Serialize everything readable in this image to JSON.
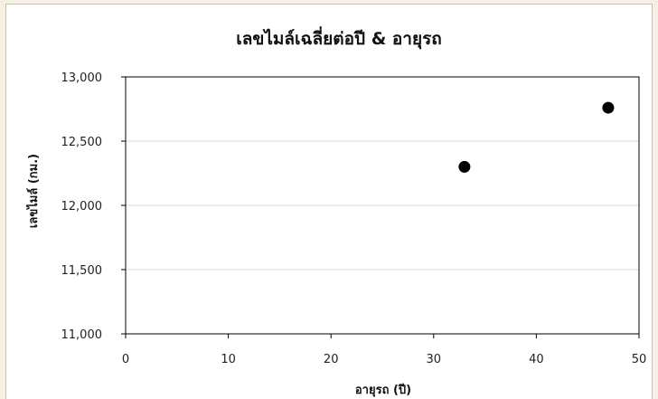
{
  "chart_data": {
    "type": "scatter",
    "title": "เลขไมล์เฉลี่ยต่อปี & อายุรถ",
    "xlabel": "อายุรถ (ปี)",
    "ylabel": "เลขไมล์ (กม.)",
    "xlim": [
      0,
      50
    ],
    "ylim": [
      11000,
      13000
    ],
    "x_ticks": [
      "0",
      "10",
      "20",
      "30",
      "40",
      "50"
    ],
    "y_ticks": [
      "11,000",
      "11,500",
      "12,000",
      "12,500",
      "13,000"
    ],
    "grid": "horizontal",
    "marker_color": "#000000",
    "points": [
      {
        "x": 33,
        "y": 12300
      },
      {
        "x": 47,
        "y": 12760
      }
    ]
  }
}
